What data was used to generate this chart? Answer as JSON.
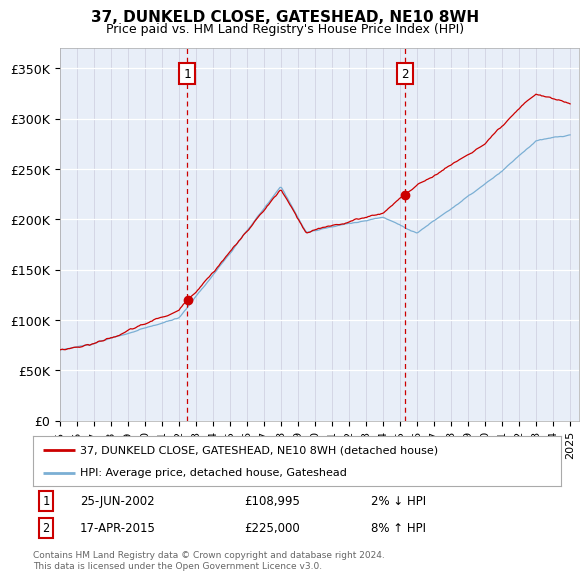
{
  "title": "37, DUNKELD CLOSE, GATESHEAD, NE10 8WH",
  "subtitle": "Price paid vs. HM Land Registry's House Price Index (HPI)",
  "ylabel_ticks": [
    "£0",
    "£50K",
    "£100K",
    "£150K",
    "£200K",
    "£250K",
    "£300K",
    "£350K"
  ],
  "ytick_values": [
    0,
    50000,
    100000,
    150000,
    200000,
    250000,
    300000,
    350000
  ],
  "ylim": [
    0,
    370000
  ],
  "xlim_start": 1995.0,
  "xlim_end": 2025.5,
  "plot_bg": "#e8eef8",
  "line_color_price": "#cc0000",
  "line_color_hpi": "#7bafd4",
  "vline1_x": 2002.48,
  "vline2_x": 2015.29,
  "sale1_date": "25-JUN-2002",
  "sale1_price": "£108,995",
  "sale1_hpi": "2% ↓ HPI",
  "sale2_date": "17-APR-2015",
  "sale2_price": "£225,000",
  "sale2_hpi": "8% ↑ HPI",
  "legend1": "37, DUNKELD CLOSE, GATESHEAD, NE10 8WH (detached house)",
  "legend2": "HPI: Average price, detached house, Gateshead",
  "footnote": "Contains HM Land Registry data © Crown copyright and database right 2024.\nThis data is licensed under the Open Government Licence v3.0."
}
